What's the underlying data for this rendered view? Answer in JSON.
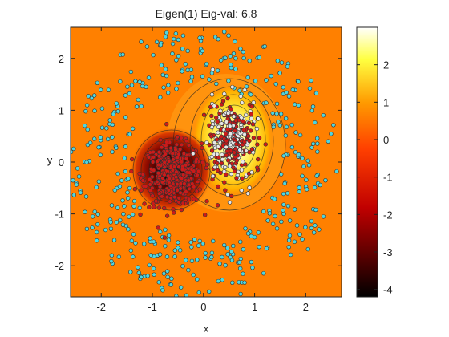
{
  "chart_data": {
    "type": "scatter",
    "title": "Eigen(1)  Eig-val: 6.8",
    "xlabel": "x",
    "ylabel": "y",
    "xlim": [
      -2.6,
      2.7
    ],
    "ylim": [
      -2.6,
      2.6
    ],
    "xticks": [
      "-2",
      "-1",
      "0",
      "1",
      "2"
    ],
    "xtick_values": [
      -2,
      -1,
      0,
      1,
      2
    ],
    "yticks": [
      "2",
      "1",
      "0",
      "-1",
      "-2"
    ],
    "ytick_values": [
      2,
      1,
      0,
      -1,
      -2
    ],
    "colorbar": {
      "ticks": [
        "2",
        "1",
        "0",
        "-1",
        "-2",
        "-3",
        "-4"
      ],
      "tick_values": [
        2,
        1,
        0,
        -1,
        -2,
        -3,
        -4
      ],
      "range": [
        -4.2,
        3.0
      ],
      "colormap": "hot"
    },
    "background": "contour of eigenfunction (filled, hot colormap)",
    "features": [
      {
        "name": "negative lobe",
        "center": [
          -0.6,
          -0.25
        ],
        "min_value": -4.1
      },
      {
        "name": "positive lobe",
        "center": [
          0.55,
          0.45
        ],
        "max_value": 2.9
      }
    ],
    "series": [
      {
        "color": "#4fd6e0",
        "distribution": "ring, radius 1.5 to 2.6"
      },
      {
        "color": "#cc1a1a",
        "distribution": "cluster at (-0.6,-0.25)"
      },
      {
        "color": "#e8e8e8",
        "distribution": "cluster at (0.55,0.45)"
      }
    ],
    "grid": false,
    "legend": "none"
  }
}
